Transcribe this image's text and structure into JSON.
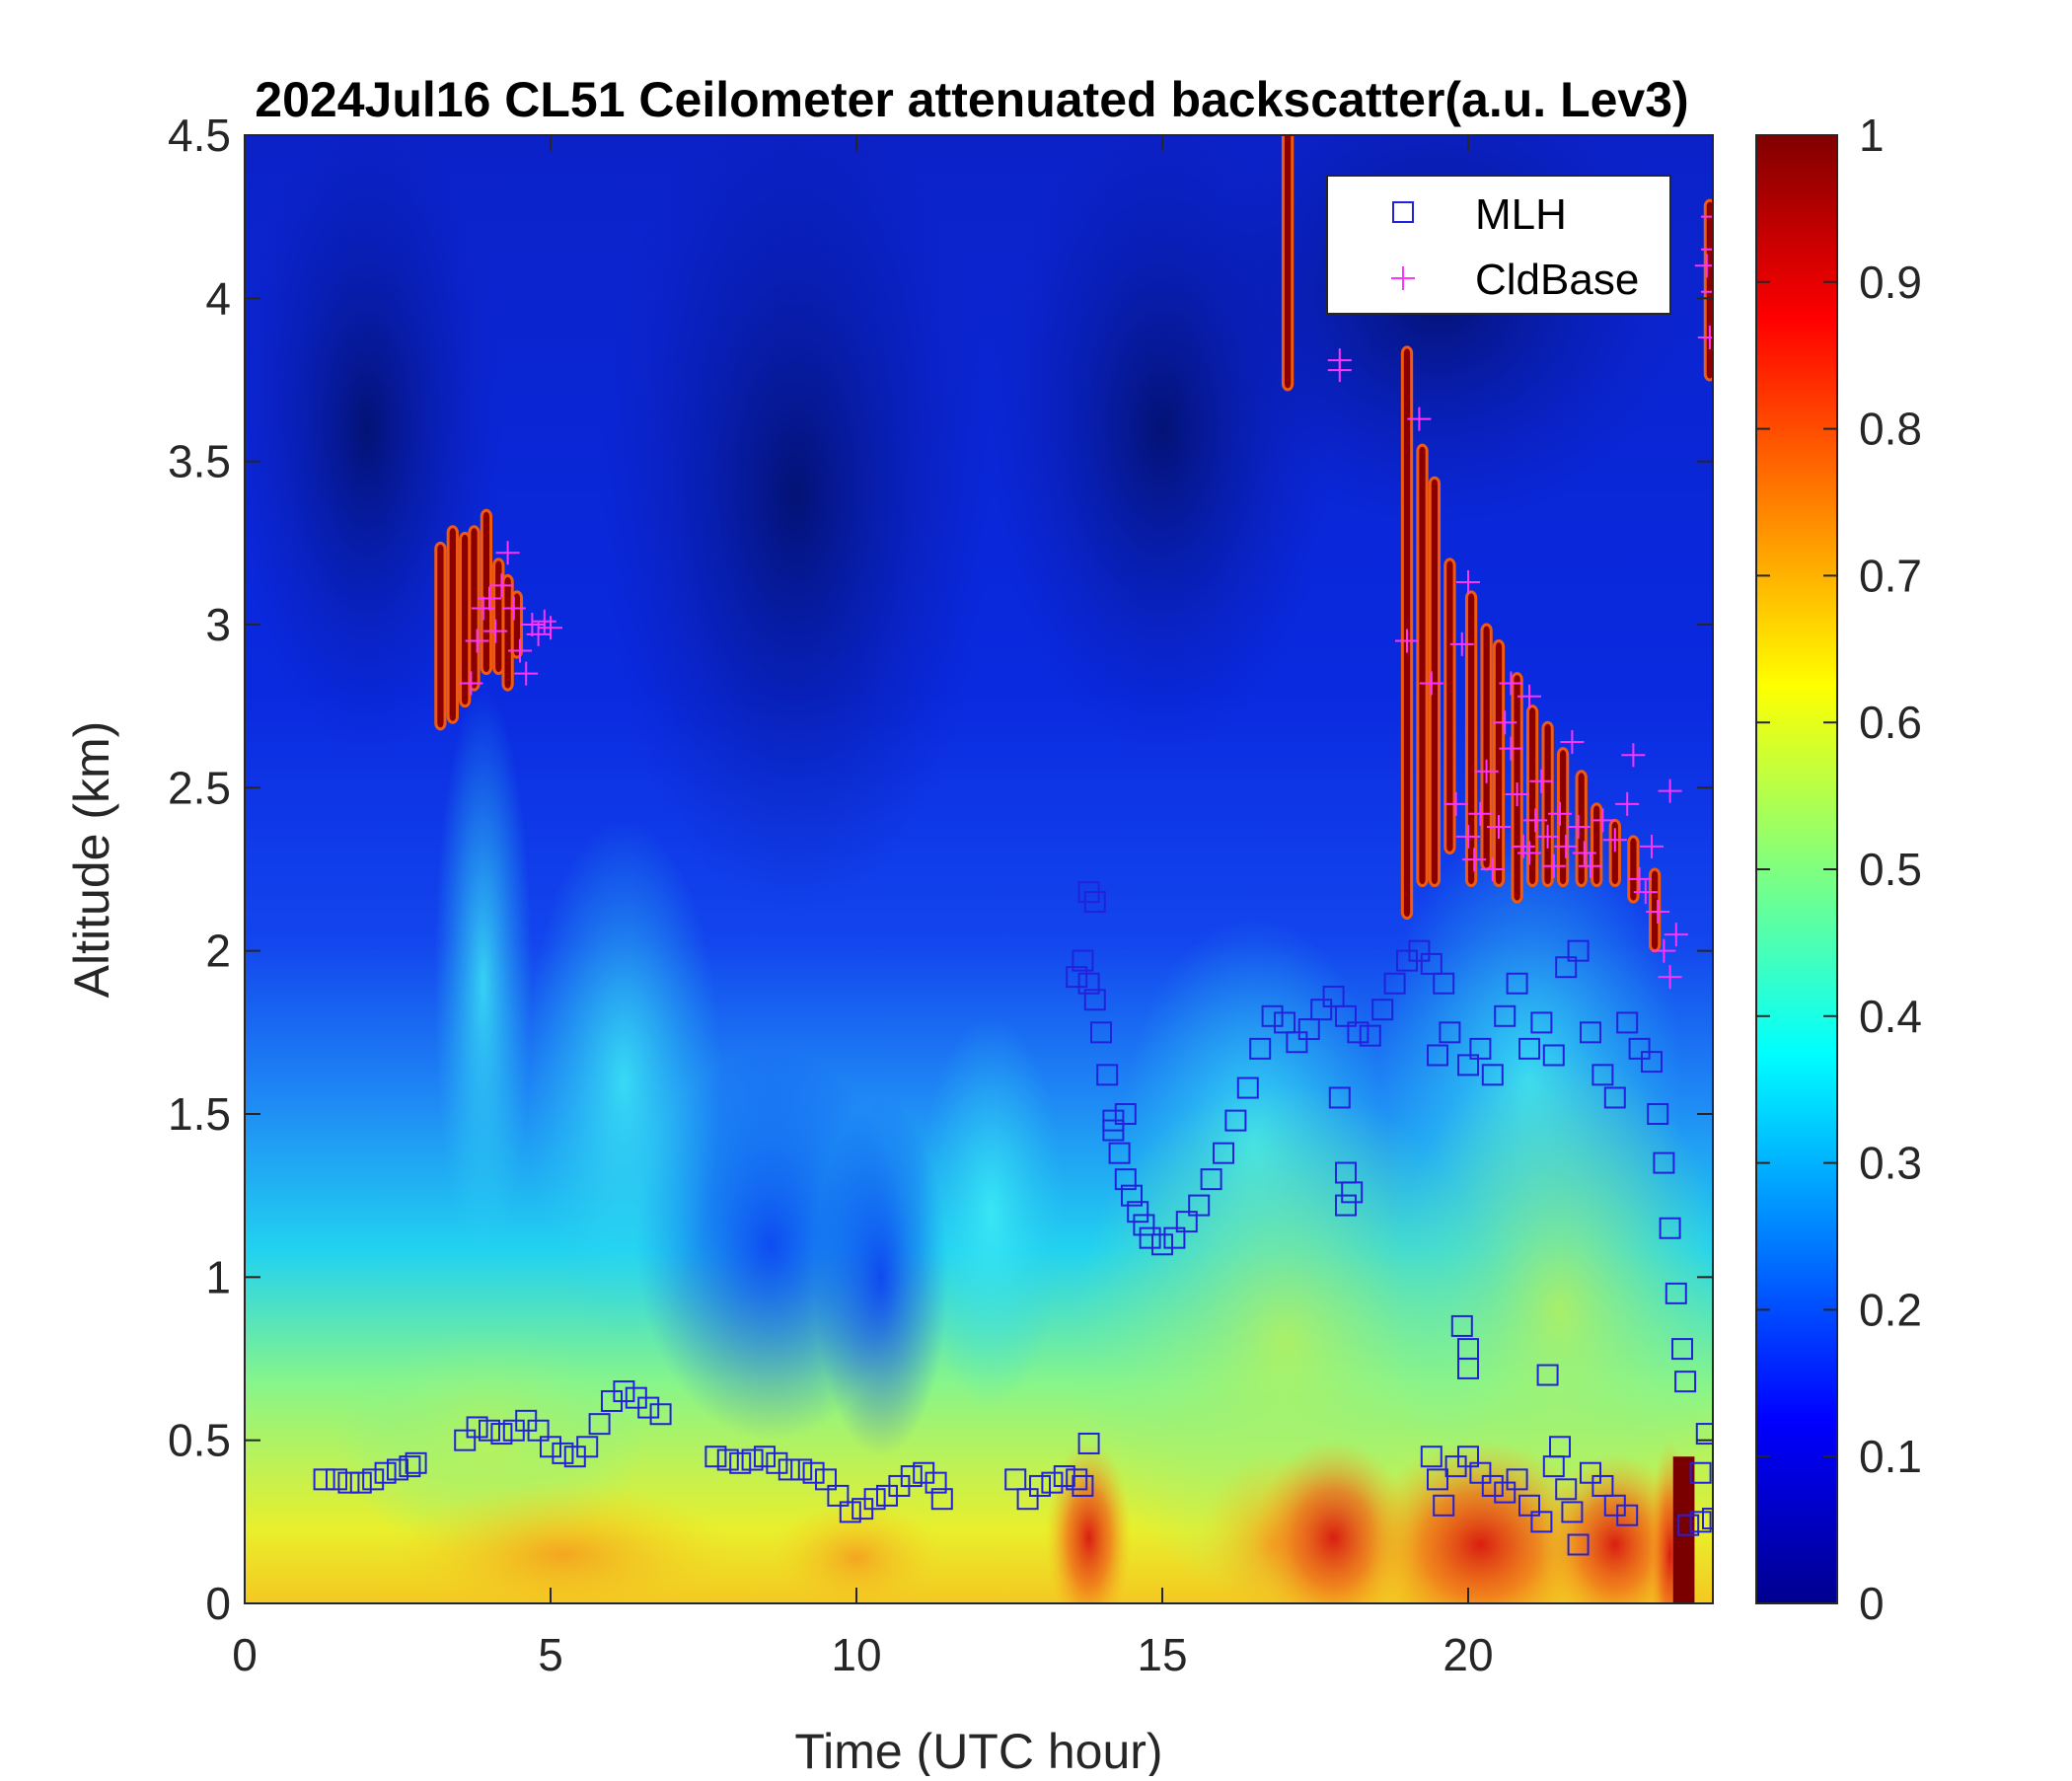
{
  "chart_data": {
    "type": "heatmap",
    "title": "2024Jul16 CL51 Ceilometer attenuated backscatter(a.u. Lev3)",
    "xlabel": "Time (UTC hour)",
    "ylabel": "Altitude (km)",
    "xlim": [
      0,
      24
    ],
    "ylim": [
      0,
      4.5
    ],
    "x_ticks": [
      0,
      5,
      10,
      15,
      20
    ],
    "x_tick_labels": [
      "0",
      "5",
      "10",
      "15",
      "20"
    ],
    "y_ticks": [
      0,
      0.5,
      1,
      1.5,
      2,
      2.5,
      3,
      3.5,
      4,
      4.5
    ],
    "y_tick_labels": [
      "0",
      "0.5",
      "1",
      "1.5",
      "2",
      "2.5",
      "3",
      "3.5",
      "4",
      "4.5"
    ],
    "colorbar": {
      "colormap": "jet",
      "range": [
        0,
        1
      ],
      "ticks": [
        0,
        0.1,
        0.2,
        0.3,
        0.4,
        0.5,
        0.6,
        0.7,
        0.8,
        0.9,
        1
      ],
      "tick_labels": [
        "0",
        "0.1",
        "0.2",
        "0.3",
        "0.4",
        "0.5",
        "0.6",
        "0.7",
        "0.8",
        "0.9",
        "1"
      ]
    },
    "grid": false,
    "legend": {
      "position": "top-right",
      "entries": [
        {
          "label": "MLH",
          "marker": "square",
          "color": "#2222dd"
        },
        {
          "label": "CldBase",
          "marker": "plus",
          "color": "#ff33ff"
        }
      ]
    },
    "series": [
      {
        "name": "MLH",
        "marker": "square",
        "color": "#2222dd",
        "points": [
          [
            1.3,
            0.38
          ],
          [
            1.5,
            0.38
          ],
          [
            1.7,
            0.37
          ],
          [
            1.9,
            0.37
          ],
          [
            2.1,
            0.38
          ],
          [
            2.3,
            0.4
          ],
          [
            2.5,
            0.41
          ],
          [
            2.7,
            0.42
          ],
          [
            2.8,
            0.43
          ],
          [
            3.6,
            0.5
          ],
          [
            3.8,
            0.54
          ],
          [
            4.0,
            0.53
          ],
          [
            4.2,
            0.52
          ],
          [
            4.4,
            0.53
          ],
          [
            4.6,
            0.56
          ],
          [
            4.8,
            0.53
          ],
          [
            5.0,
            0.48
          ],
          [
            5.2,
            0.46
          ],
          [
            5.4,
            0.45
          ],
          [
            5.6,
            0.48
          ],
          [
            5.8,
            0.55
          ],
          [
            6.0,
            0.62
          ],
          [
            6.2,
            0.65
          ],
          [
            6.4,
            0.63
          ],
          [
            6.6,
            0.6
          ],
          [
            6.8,
            0.58
          ],
          [
            7.7,
            0.45
          ],
          [
            7.9,
            0.44
          ],
          [
            8.1,
            0.43
          ],
          [
            8.3,
            0.44
          ],
          [
            8.5,
            0.45
          ],
          [
            8.7,
            0.43
          ],
          [
            8.9,
            0.41
          ],
          [
            9.1,
            0.41
          ],
          [
            9.3,
            0.4
          ],
          [
            9.5,
            0.38
          ],
          [
            9.7,
            0.33
          ],
          [
            9.9,
            0.28
          ],
          [
            10.1,
            0.29
          ],
          [
            10.3,
            0.32
          ],
          [
            10.5,
            0.33
          ],
          [
            10.7,
            0.36
          ],
          [
            10.9,
            0.39
          ],
          [
            11.1,
            0.4
          ],
          [
            11.3,
            0.37
          ],
          [
            11.4,
            0.32
          ],
          [
            12.6,
            0.38
          ],
          [
            12.8,
            0.32
          ],
          [
            13.0,
            0.36
          ],
          [
            13.2,
            0.37
          ],
          [
            13.4,
            0.39
          ],
          [
            13.6,
            0.38
          ],
          [
            13.7,
            0.36
          ],
          [
            13.8,
            0.49
          ],
          [
            13.6,
            1.92
          ],
          [
            13.7,
            1.97
          ],
          [
            13.8,
            1.9
          ],
          [
            13.9,
            1.85
          ],
          [
            14.0,
            1.75
          ],
          [
            14.1,
            1.62
          ],
          [
            14.2,
            1.48
          ],
          [
            14.3,
            1.38
          ],
          [
            14.4,
            1.3
          ],
          [
            14.5,
            1.25
          ],
          [
            14.6,
            1.2
          ],
          [
            14.7,
            1.16
          ],
          [
            14.8,
            1.12
          ],
          [
            15.0,
            1.1
          ],
          [
            15.2,
            1.12
          ],
          [
            15.4,
            1.17
          ],
          [
            15.6,
            1.22
          ],
          [
            15.8,
            1.3
          ],
          [
            16.0,
            1.38
          ],
          [
            16.2,
            1.48
          ],
          [
            16.4,
            1.58
          ],
          [
            16.6,
            1.7
          ],
          [
            16.8,
            1.8
          ],
          [
            17.0,
            1.78
          ],
          [
            17.2,
            1.72
          ],
          [
            17.4,
            1.76
          ],
          [
            17.6,
            1.82
          ],
          [
            17.8,
            1.86
          ],
          [
            18.0,
            1.8
          ],
          [
            18.2,
            1.75
          ],
          [
            18.4,
            1.74
          ],
          [
            18.6,
            1.82
          ],
          [
            18.8,
            1.9
          ],
          [
            19.0,
            1.97
          ],
          [
            19.2,
            2.0
          ],
          [
            19.4,
            1.96
          ],
          [
            19.6,
            1.9
          ],
          [
            13.8,
            2.18
          ],
          [
            13.9,
            2.15
          ],
          [
            14.2,
            1.45
          ],
          [
            14.4,
            1.5
          ],
          [
            17.9,
            1.55
          ],
          [
            18.0,
            1.32
          ],
          [
            18.1,
            1.26
          ],
          [
            18.0,
            1.22
          ],
          [
            19.5,
            1.68
          ],
          [
            19.7,
            1.75
          ],
          [
            20.0,
            1.65
          ],
          [
            20.2,
            1.7
          ],
          [
            20.4,
            1.62
          ],
          [
            20.6,
            1.8
          ],
          [
            20.8,
            1.9
          ],
          [
            21.0,
            1.7
          ],
          [
            21.2,
            1.78
          ],
          [
            21.4,
            1.68
          ],
          [
            21.6,
            1.95
          ],
          [
            21.8,
            2.0
          ],
          [
            22.0,
            1.75
          ],
          [
            22.2,
            1.62
          ],
          [
            22.4,
            1.55
          ],
          [
            22.6,
            1.78
          ],
          [
            22.8,
            1.7
          ],
          [
            23.0,
            1.66
          ],
          [
            23.1,
            1.5
          ],
          [
            23.2,
            1.35
          ],
          [
            23.3,
            1.15
          ],
          [
            23.4,
            0.95
          ],
          [
            23.5,
            0.78
          ],
          [
            23.55,
            0.68
          ],
          [
            19.9,
            0.85
          ],
          [
            20.0,
            0.78
          ],
          [
            20.0,
            0.72
          ],
          [
            21.3,
            0.7
          ],
          [
            19.4,
            0.45
          ],
          [
            19.5,
            0.38
          ],
          [
            19.6,
            0.3
          ],
          [
            19.8,
            0.42
          ],
          [
            20.0,
            0.45
          ],
          [
            20.2,
            0.4
          ],
          [
            20.4,
            0.36
          ],
          [
            20.6,
            0.34
          ],
          [
            20.8,
            0.38
          ],
          [
            21.0,
            0.3
          ],
          [
            21.2,
            0.25
          ],
          [
            21.4,
            0.42
          ],
          [
            21.5,
            0.48
          ],
          [
            21.6,
            0.35
          ],
          [
            21.7,
            0.28
          ],
          [
            21.8,
            0.18
          ],
          [
            22.0,
            0.4
          ],
          [
            22.2,
            0.36
          ],
          [
            22.4,
            0.3
          ],
          [
            22.6,
            0.27
          ],
          [
            23.6,
            0.24
          ],
          [
            23.8,
            0.25
          ],
          [
            24.0,
            0.26
          ],
          [
            23.9,
            0.52
          ],
          [
            23.8,
            0.4
          ]
        ]
      },
      {
        "name": "CldBase",
        "marker": "plus",
        "color": "#ff33ff",
        "points": [
          [
            3.7,
            2.82
          ],
          [
            3.8,
            2.95
          ],
          [
            3.9,
            3.05
          ],
          [
            4.0,
            3.08
          ],
          [
            4.1,
            2.98
          ],
          [
            4.2,
            3.12
          ],
          [
            4.3,
            3.22
          ],
          [
            4.4,
            3.05
          ],
          [
            4.5,
            2.92
          ],
          [
            4.6,
            2.85
          ],
          [
            4.7,
            3.0
          ],
          [
            4.8,
            2.97
          ],
          [
            4.9,
            3.01
          ],
          [
            5.0,
            2.99
          ],
          [
            17.9,
            3.81
          ],
          [
            17.9,
            3.78
          ],
          [
            19.2,
            3.63
          ],
          [
            19.4,
            2.82
          ],
          [
            19.0,
            2.95
          ],
          [
            20.0,
            3.13
          ],
          [
            19.9,
            2.94
          ],
          [
            19.8,
            2.45
          ],
          [
            20.0,
            2.35
          ],
          [
            20.1,
            2.28
          ],
          [
            20.2,
            2.42
          ],
          [
            20.3,
            2.55
          ],
          [
            20.4,
            2.25
          ],
          [
            20.5,
            2.38
          ],
          [
            20.6,
            2.7
          ],
          [
            20.7,
            2.62
          ],
          [
            20.8,
            2.48
          ],
          [
            20.9,
            2.32
          ],
          [
            21.0,
            2.3
          ],
          [
            21.1,
            2.4
          ],
          [
            21.2,
            2.52
          ],
          [
            21.3,
            2.35
          ],
          [
            21.4,
            2.26
          ],
          [
            21.5,
            2.42
          ],
          [
            21.6,
            2.32
          ],
          [
            21.7,
            2.64
          ],
          [
            21.8,
            2.38
          ],
          [
            21.9,
            2.3
          ],
          [
            22.0,
            2.26
          ],
          [
            22.2,
            2.4
          ],
          [
            22.4,
            2.34
          ],
          [
            22.6,
            2.45
          ],
          [
            22.7,
            2.6
          ],
          [
            22.8,
            2.22
          ],
          [
            22.9,
            2.18
          ],
          [
            23.0,
            2.32
          ],
          [
            23.1,
            2.12
          ],
          [
            23.2,
            2.0
          ],
          [
            23.3,
            1.92
          ],
          [
            23.4,
            2.05
          ],
          [
            23.3,
            2.49
          ],
          [
            21.0,
            2.78
          ],
          [
            20.7,
            2.82
          ],
          [
            24.0,
            4.25
          ],
          [
            24.0,
            4.15
          ],
          [
            23.9,
            4.1
          ],
          [
            24.0,
            4.02
          ],
          [
            23.95,
            3.88
          ]
        ]
      }
    ]
  }
}
